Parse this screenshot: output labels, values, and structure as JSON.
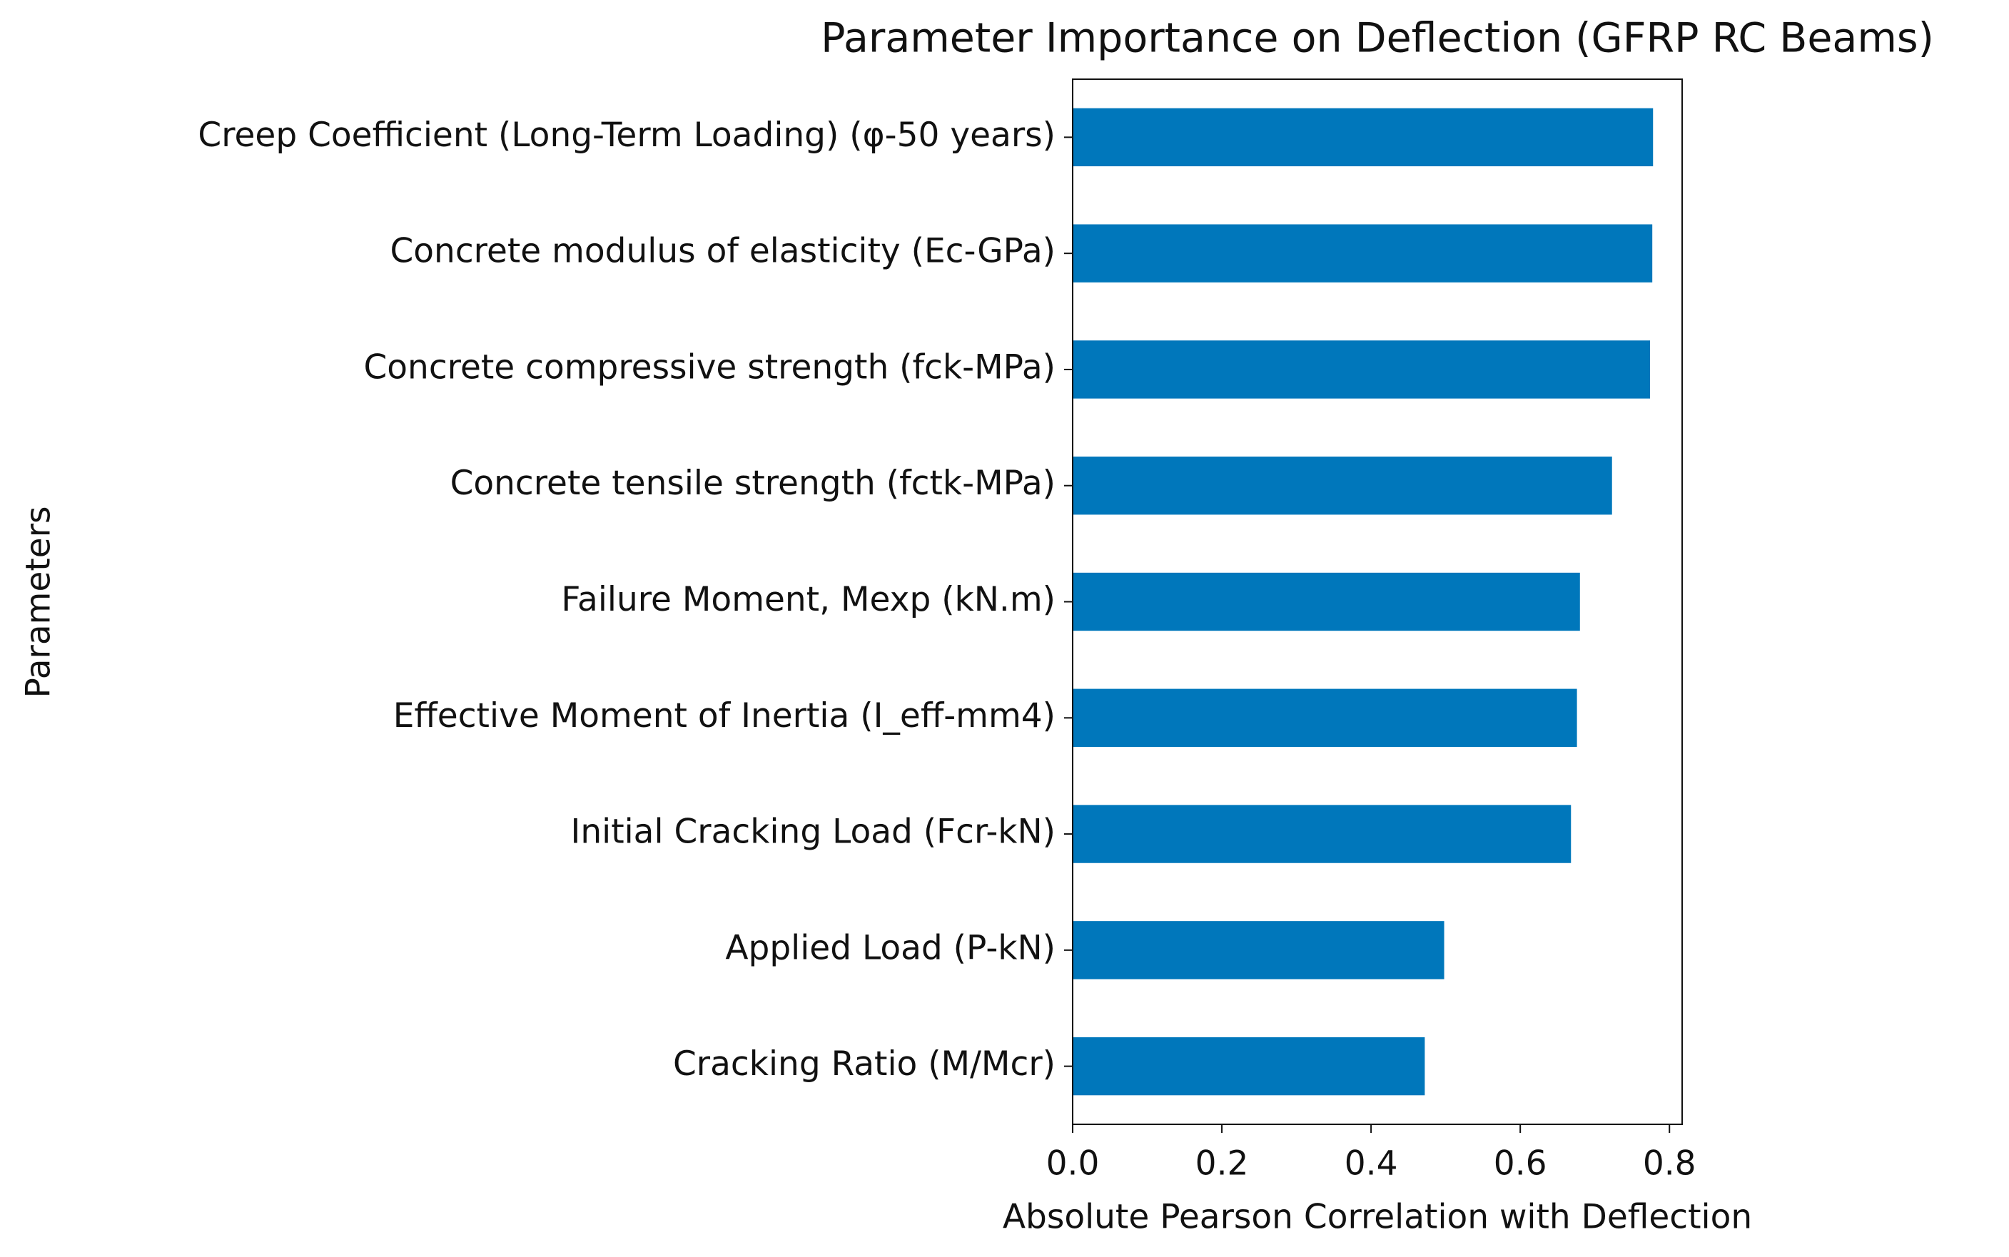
{
  "chart_data": {
    "type": "barh",
    "title": "Parameter Importance on Deflection (GFRP RC Beams)",
    "x_label": "Absolute Pearson Correlation with Deflection",
    "y_label": "Parameters",
    "categories": [
      "Creep Coefficient (Long-Term Loading) (φ-50 years)",
      "Concrete modulus of elasticity (Ec-GPa)",
      "Concrete compressive strength (fck-MPa)",
      "Concrete tensile strength (fctk-MPa)",
      "Failure Moment, Mexp (kN.m)",
      "Effective Moment of Inertia (I_eff-mm4)",
      "Initial Cracking Load (Fcr-kN)",
      "Applied Load (P-kN)",
      "Cracking Ratio (M/Mcr)"
    ],
    "values": [
      0.778,
      0.777,
      0.774,
      0.723,
      0.68,
      0.676,
      0.668,
      0.498,
      0.472
    ],
    "color": "#0077bb",
    "xlim": [
      0,
      0.817
    ],
    "xticks": [
      {
        "value": 0,
        "label": "0.0"
      },
      0.2,
      0.4,
      0.6,
      0.8
    ],
    "grid": false
  }
}
